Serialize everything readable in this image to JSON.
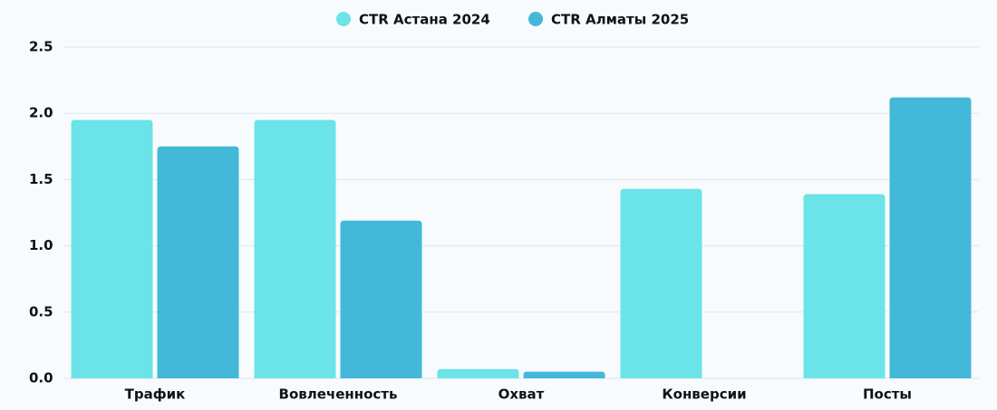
{
  "chart_data": {
    "type": "bar",
    "categories": [
      "Трафик",
      "Вовлеченность",
      "Охват",
      "Конверсии",
      "Посты"
    ],
    "series": [
      {
        "name": "CTR Астана 2024",
        "color": "#6ae4e8",
        "values": [
          1.95,
          1.95,
          0.07,
          1.43,
          1.39
        ]
      },
      {
        "name": "CTR Алматы 2025",
        "color": "#43b8d8",
        "values": [
          1.75,
          1.19,
          0.05,
          0,
          2.12
        ]
      }
    ],
    "ylim": [
      0,
      2.5
    ],
    "yticks": [
      {
        "value": 0,
        "label": "0.0"
      },
      0.5,
      {
        "value": 1,
        "label": "1.0"
      },
      1.5,
      {
        "value": 2,
        "label": "2.0"
      },
      2.5
    ],
    "grid": true,
    "legend": "top"
  }
}
